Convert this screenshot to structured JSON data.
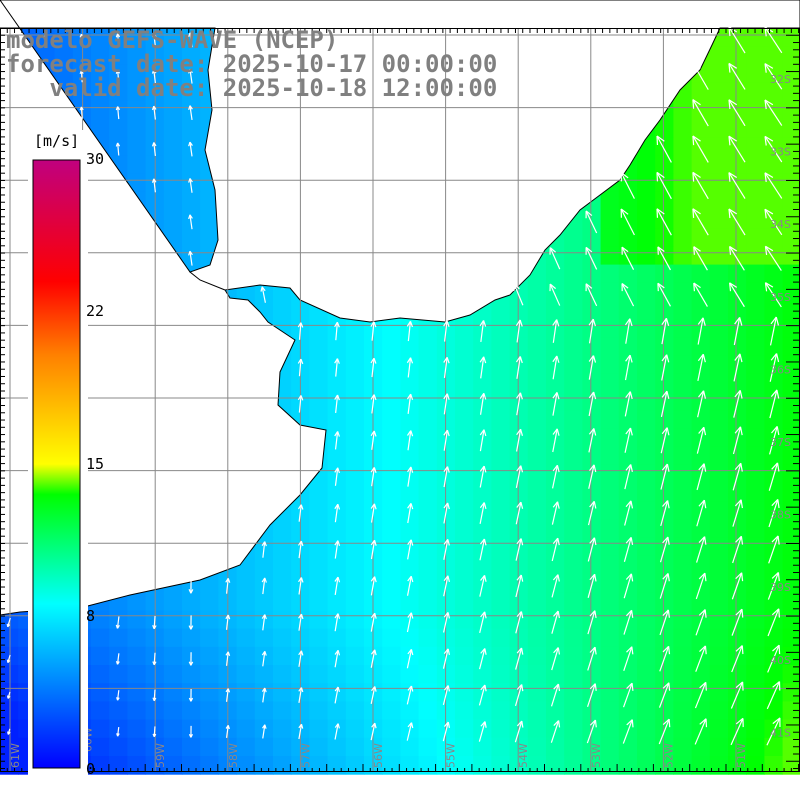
{
  "header": {
    "line1": "modelo GEFS-WAVE (NCEP)",
    "line2": "forecast date: 2025-10-17 00:00:00",
    "line3": "   valid date: 2025-10-18 12:00:00"
  },
  "colorbar": {
    "units": "[m/s]",
    "ticks": [
      "30",
      "22",
      "15",
      "8",
      "0"
    ],
    "range": [
      0,
      30
    ],
    "colors": [
      "#0000ff",
      "#00ffff",
      "#00ff00",
      "#ffff00",
      "#ff8000",
      "#ff0000",
      "#c0007f"
    ]
  },
  "map": {
    "lon_labels": [
      "61W",
      "60W",
      "59W",
      "58W",
      "57W",
      "56W",
      "55W",
      "54W",
      "53W",
      "52W",
      "51W"
    ],
    "lat_labels": [
      "32S",
      "33S",
      "34S",
      "35S",
      "36S",
      "37S",
      "38S",
      "39S",
      "40S",
      "41S"
    ],
    "land_color": "#ffffff",
    "grid_color": "#888888"
  }
}
